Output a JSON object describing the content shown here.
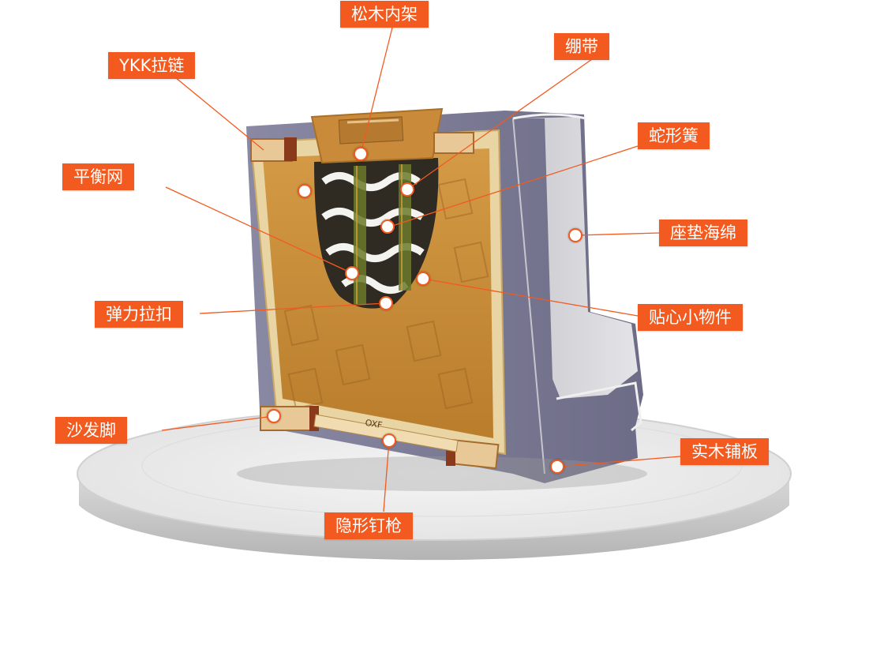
{
  "callouts": {
    "pine_frame": "松木内架",
    "straps": "绷带",
    "ykk_zipper": "YKK拉链",
    "serpentine_spring": "蛇形簧",
    "balance_net": "平衡网",
    "seat_foam": "座垫海绵",
    "elastic_buckle": "弹力拉扣",
    "intimate_parts": "贴心小物件",
    "sofa_foot": "沙发脚",
    "solid_wood_board": "实木铺板",
    "hidden_nail_gun": "隐形钉枪"
  },
  "frame_stamp": "OXF",
  "colors": {
    "accent": "#f25a1f",
    "fabric": "#7b7a95",
    "backing": "#c98f38",
    "wood": "#e9d4a4"
  }
}
